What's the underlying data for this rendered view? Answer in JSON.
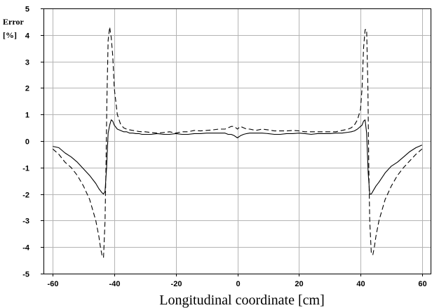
{
  "chart_data": {
    "type": "line",
    "title": "",
    "xlabel": "Longitudinal coordinate [cm]",
    "ylabel_lines": [
      "Error",
      "[%]"
    ],
    "xlim": [
      -63,
      63
    ],
    "ylim": [
      -5,
      5
    ],
    "xticks": [
      -60,
      -40,
      -20,
      0,
      20,
      40,
      60
    ],
    "yticks": [
      -5,
      -4,
      -3,
      -2,
      -1,
      0,
      1,
      2,
      3,
      4,
      5
    ],
    "grid": true,
    "legend": "none",
    "series": [
      {
        "style": "solid",
        "color": "#000000",
        "x": [
          -60,
          -58,
          -56,
          -54,
          -52,
          -50,
          -48,
          -46,
          -45,
          -44,
          -43.5,
          -43,
          -42.5,
          -42,
          -41.5,
          -41,
          -40.5,
          -40,
          -39,
          -38,
          -37,
          -36,
          -35,
          -34,
          -33,
          -32,
          -31,
          -30,
          -28,
          -26,
          -24,
          -22,
          -20,
          -18,
          -16,
          -14,
          -12,
          -10,
          -8,
          -6,
          -4,
          -3,
          -2,
          -1,
          0,
          1,
          2,
          3,
          4,
          6,
          8,
          10,
          12,
          14,
          16,
          18,
          20,
          22,
          24,
          26,
          28,
          30,
          32,
          34,
          36,
          37,
          38,
          39,
          40,
          40.5,
          41,
          41.5,
          42,
          42.5,
          43,
          43.5,
          44,
          45,
          46,
          48,
          50,
          52,
          54,
          56,
          58,
          60
        ],
        "y": [
          -0.2,
          -0.25,
          -0.45,
          -0.6,
          -0.8,
          -1.05,
          -1.3,
          -1.6,
          -1.8,
          -1.95,
          -2.0,
          -1.9,
          -1.0,
          0.3,
          0.6,
          0.8,
          0.75,
          0.6,
          0.45,
          0.4,
          0.35,
          0.35,
          0.3,
          0.3,
          0.28,
          0.28,
          0.25,
          0.25,
          0.25,
          0.28,
          0.25,
          0.25,
          0.28,
          0.25,
          0.25,
          0.28,
          0.28,
          0.3,
          0.3,
          0.3,
          0.3,
          0.25,
          0.25,
          0.2,
          0.12,
          0.2,
          0.25,
          0.28,
          0.3,
          0.3,
          0.3,
          0.28,
          0.25,
          0.25,
          0.28,
          0.28,
          0.3,
          0.28,
          0.25,
          0.28,
          0.28,
          0.28,
          0.3,
          0.3,
          0.33,
          0.35,
          0.38,
          0.45,
          0.55,
          0.6,
          0.75,
          0.8,
          0.3,
          -1.2,
          -2.0,
          -2.0,
          -1.9,
          -1.7,
          -1.55,
          -1.2,
          -0.95,
          -0.8,
          -0.6,
          -0.4,
          -0.25,
          -0.15
        ]
      },
      {
        "style": "dashed",
        "color": "#000000",
        "x": [
          -60,
          -58,
          -56,
          -54,
          -52,
          -50,
          -48,
          -47,
          -46,
          -45,
          -44.5,
          -44,
          -43.5,
          -43,
          -42.7,
          -42.4,
          -42,
          -41.5,
          -41,
          -40.5,
          -40,
          -39,
          -38,
          -37,
          -36,
          -35,
          -34,
          -33,
          -32,
          -31,
          -30,
          -28,
          -26,
          -24,
          -22,
          -20,
          -18,
          -16,
          -14,
          -12,
          -10,
          -8,
          -6,
          -4,
          -3,
          -2,
          -1,
          0,
          1,
          2,
          3,
          4,
          6,
          8,
          10,
          12,
          14,
          16,
          18,
          20,
          22,
          24,
          26,
          28,
          30,
          32,
          34,
          36,
          37,
          38,
          39,
          40,
          40.5,
          41,
          41.5,
          42,
          42.4,
          42.7,
          43,
          43.5,
          44,
          44.5,
          45,
          46,
          47,
          48,
          50,
          52,
          54,
          56,
          58,
          60
        ],
        "y": [
          -0.3,
          -0.5,
          -0.8,
          -1.0,
          -1.3,
          -1.7,
          -2.2,
          -2.6,
          -3.0,
          -3.6,
          -4.0,
          -4.3,
          -4.4,
          -3.0,
          -1.0,
          1.5,
          3.8,
          4.3,
          3.9,
          3.2,
          2.0,
          1.0,
          0.65,
          0.5,
          0.45,
          0.42,
          0.4,
          0.38,
          0.36,
          0.35,
          0.35,
          0.32,
          0.3,
          0.32,
          0.35,
          0.3,
          0.35,
          0.35,
          0.4,
          0.38,
          0.4,
          0.42,
          0.45,
          0.45,
          0.5,
          0.55,
          0.55,
          0.45,
          0.55,
          0.5,
          0.45,
          0.45,
          0.4,
          0.45,
          0.42,
          0.38,
          0.38,
          0.38,
          0.4,
          0.38,
          0.35,
          0.35,
          0.35,
          0.35,
          0.35,
          0.35,
          0.4,
          0.45,
          0.5,
          0.6,
          0.8,
          1.2,
          2.0,
          3.5,
          4.2,
          4.2,
          2.0,
          -1.0,
          -3.0,
          -4.2,
          -4.3,
          -4.0,
          -3.6,
          -3.0,
          -2.6,
          -2.2,
          -1.7,
          -1.3,
          -1.0,
          -0.75,
          -0.5,
          -0.3
        ]
      }
    ]
  }
}
